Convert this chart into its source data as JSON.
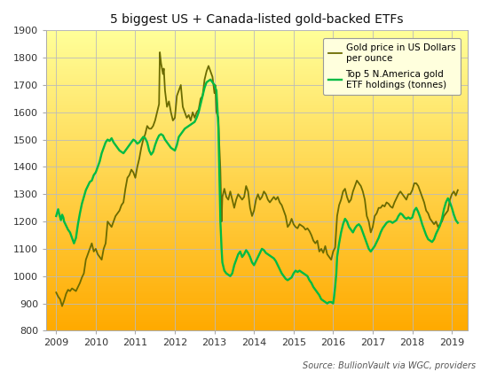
{
  "title": "5 biggest US + Canada-listed gold-backed ETFs",
  "source_text": "Source: BullionVault via WGC, providers",
  "legend_line1": "Gold price in US Dollars\nper ounce",
  "legend_line2": "Top 5 N.America gold\nETF holdings (tonnes)",
  "ylim": [
    800,
    1900
  ],
  "yticks": [
    800,
    900,
    1000,
    1100,
    1200,
    1300,
    1400,
    1500,
    1600,
    1700,
    1800,
    1900
  ],
  "xlim": [
    2008.75,
    2019.4
  ],
  "xticks": [
    2009,
    2010,
    2011,
    2012,
    2013,
    2014,
    2015,
    2016,
    2017,
    2018,
    2019
  ],
  "color_gold_price": "#6b6b00",
  "color_etf_holdings": "#00bb44",
  "gold_price": [
    [
      2009.0,
      940
    ],
    [
      2009.05,
      925
    ],
    [
      2009.1,
      915
    ],
    [
      2009.15,
      890
    ],
    [
      2009.2,
      910
    ],
    [
      2009.25,
      935
    ],
    [
      2009.3,
      950
    ],
    [
      2009.35,
      945
    ],
    [
      2009.4,
      955
    ],
    [
      2009.45,
      950
    ],
    [
      2009.5,
      945
    ],
    [
      2009.55,
      960
    ],
    [
      2009.6,
      975
    ],
    [
      2009.65,
      995
    ],
    [
      2009.7,
      1010
    ],
    [
      2009.75,
      1060
    ],
    [
      2009.8,
      1080
    ],
    [
      2009.85,
      1100
    ],
    [
      2009.9,
      1120
    ],
    [
      2009.95,
      1090
    ],
    [
      2010.0,
      1100
    ],
    [
      2010.05,
      1080
    ],
    [
      2010.1,
      1070
    ],
    [
      2010.15,
      1060
    ],
    [
      2010.2,
      1100
    ],
    [
      2010.25,
      1120
    ],
    [
      2010.3,
      1200
    ],
    [
      2010.35,
      1190
    ],
    [
      2010.4,
      1180
    ],
    [
      2010.45,
      1200
    ],
    [
      2010.5,
      1220
    ],
    [
      2010.55,
      1230
    ],
    [
      2010.6,
      1240
    ],
    [
      2010.65,
      1260
    ],
    [
      2010.7,
      1270
    ],
    [
      2010.75,
      1320
    ],
    [
      2010.8,
      1360
    ],
    [
      2010.85,
      1370
    ],
    [
      2010.9,
      1390
    ],
    [
      2010.95,
      1380
    ],
    [
      2011.0,
      1360
    ],
    [
      2011.05,
      1400
    ],
    [
      2011.1,
      1430
    ],
    [
      2011.15,
      1470
    ],
    [
      2011.2,
      1500
    ],
    [
      2011.25,
      1520
    ],
    [
      2011.3,
      1550
    ],
    [
      2011.35,
      1540
    ],
    [
      2011.4,
      1540
    ],
    [
      2011.45,
      1550
    ],
    [
      2011.5,
      1570
    ],
    [
      2011.55,
      1600
    ],
    [
      2011.6,
      1630
    ],
    [
      2011.62,
      1820
    ],
    [
      2011.65,
      1780
    ],
    [
      2011.7,
      1740
    ],
    [
      2011.72,
      1760
    ],
    [
      2011.75,
      1680
    ],
    [
      2011.8,
      1620
    ],
    [
      2011.85,
      1640
    ],
    [
      2011.9,
      1600
    ],
    [
      2011.95,
      1570
    ],
    [
      2012.0,
      1580
    ],
    [
      2012.05,
      1660
    ],
    [
      2012.1,
      1680
    ],
    [
      2012.15,
      1700
    ],
    [
      2012.2,
      1620
    ],
    [
      2012.25,
      1600
    ],
    [
      2012.3,
      1580
    ],
    [
      2012.35,
      1590
    ],
    [
      2012.4,
      1570
    ],
    [
      2012.45,
      1600
    ],
    [
      2012.5,
      1580
    ],
    [
      2012.55,
      1600
    ],
    [
      2012.6,
      1610
    ],
    [
      2012.65,
      1650
    ],
    [
      2012.7,
      1660
    ],
    [
      2012.75,
      1720
    ],
    [
      2012.8,
      1750
    ],
    [
      2012.85,
      1770
    ],
    [
      2012.9,
      1750
    ],
    [
      2012.95,
      1730
    ],
    [
      2013.0,
      1670
    ],
    [
      2013.02,
      1700
    ],
    [
      2013.05,
      1600
    ],
    [
      2013.1,
      1580
    ],
    [
      2013.12,
      1490
    ],
    [
      2013.15,
      1390
    ],
    [
      2013.18,
      1200
    ],
    [
      2013.2,
      1290
    ],
    [
      2013.25,
      1320
    ],
    [
      2013.3,
      1290
    ],
    [
      2013.35,
      1280
    ],
    [
      2013.4,
      1310
    ],
    [
      2013.45,
      1280
    ],
    [
      2013.5,
      1250
    ],
    [
      2013.55,
      1280
    ],
    [
      2013.6,
      1300
    ],
    [
      2013.65,
      1290
    ],
    [
      2013.7,
      1280
    ],
    [
      2013.75,
      1290
    ],
    [
      2013.8,
      1330
    ],
    [
      2013.85,
      1310
    ],
    [
      2013.9,
      1250
    ],
    [
      2013.95,
      1220
    ],
    [
      2014.0,
      1240
    ],
    [
      2014.05,
      1280
    ],
    [
      2014.1,
      1300
    ],
    [
      2014.15,
      1280
    ],
    [
      2014.2,
      1290
    ],
    [
      2014.25,
      1310
    ],
    [
      2014.3,
      1300
    ],
    [
      2014.35,
      1280
    ],
    [
      2014.4,
      1270
    ],
    [
      2014.45,
      1280
    ],
    [
      2014.5,
      1290
    ],
    [
      2014.55,
      1280
    ],
    [
      2014.6,
      1290
    ],
    [
      2014.65,
      1270
    ],
    [
      2014.7,
      1260
    ],
    [
      2014.75,
      1240
    ],
    [
      2014.8,
      1220
    ],
    [
      2014.85,
      1180
    ],
    [
      2014.9,
      1190
    ],
    [
      2014.95,
      1210
    ],
    [
      2015.0,
      1190
    ],
    [
      2015.05,
      1180
    ],
    [
      2015.1,
      1175
    ],
    [
      2015.15,
      1190
    ],
    [
      2015.2,
      1185
    ],
    [
      2015.25,
      1180
    ],
    [
      2015.3,
      1170
    ],
    [
      2015.35,
      1175
    ],
    [
      2015.4,
      1165
    ],
    [
      2015.45,
      1150
    ],
    [
      2015.5,
      1130
    ],
    [
      2015.55,
      1120
    ],
    [
      2015.6,
      1130
    ],
    [
      2015.65,
      1090
    ],
    [
      2015.7,
      1100
    ],
    [
      2015.75,
      1085
    ],
    [
      2015.8,
      1110
    ],
    [
      2015.85,
      1080
    ],
    [
      2015.9,
      1070
    ],
    [
      2015.95,
      1060
    ],
    [
      2016.0,
      1090
    ],
    [
      2016.05,
      1105
    ],
    [
      2016.1,
      1220
    ],
    [
      2016.15,
      1260
    ],
    [
      2016.2,
      1280
    ],
    [
      2016.25,
      1310
    ],
    [
      2016.3,
      1320
    ],
    [
      2016.35,
      1290
    ],
    [
      2016.4,
      1270
    ],
    [
      2016.45,
      1280
    ],
    [
      2016.5,
      1310
    ],
    [
      2016.55,
      1330
    ],
    [
      2016.6,
      1350
    ],
    [
      2016.65,
      1340
    ],
    [
      2016.7,
      1330
    ],
    [
      2016.75,
      1310
    ],
    [
      2016.8,
      1280
    ],
    [
      2016.85,
      1220
    ],
    [
      2016.9,
      1200
    ],
    [
      2016.95,
      1160
    ],
    [
      2017.0,
      1180
    ],
    [
      2017.05,
      1220
    ],
    [
      2017.1,
      1230
    ],
    [
      2017.15,
      1250
    ],
    [
      2017.2,
      1250
    ],
    [
      2017.25,
      1260
    ],
    [
      2017.3,
      1255
    ],
    [
      2017.35,
      1270
    ],
    [
      2017.4,
      1265
    ],
    [
      2017.45,
      1255
    ],
    [
      2017.5,
      1250
    ],
    [
      2017.55,
      1270
    ],
    [
      2017.6,
      1285
    ],
    [
      2017.65,
      1300
    ],
    [
      2017.7,
      1310
    ],
    [
      2017.75,
      1300
    ],
    [
      2017.8,
      1290
    ],
    [
      2017.85,
      1280
    ],
    [
      2017.9,
      1300
    ],
    [
      2017.95,
      1300
    ],
    [
      2018.0,
      1315
    ],
    [
      2018.05,
      1340
    ],
    [
      2018.1,
      1340
    ],
    [
      2018.15,
      1330
    ],
    [
      2018.2,
      1310
    ],
    [
      2018.25,
      1290
    ],
    [
      2018.3,
      1270
    ],
    [
      2018.35,
      1240
    ],
    [
      2018.4,
      1230
    ],
    [
      2018.45,
      1210
    ],
    [
      2018.5,
      1200
    ],
    [
      2018.55,
      1190
    ],
    [
      2018.6,
      1200
    ],
    [
      2018.65,
      1180
    ],
    [
      2018.7,
      1190
    ],
    [
      2018.75,
      1200
    ],
    [
      2018.8,
      1220
    ],
    [
      2018.85,
      1230
    ],
    [
      2018.9,
      1240
    ],
    [
      2018.95,
      1280
    ],
    [
      2019.0,
      1300
    ],
    [
      2019.05,
      1310
    ],
    [
      2019.1,
      1295
    ],
    [
      2019.15,
      1315
    ]
  ],
  "etf_holdings": [
    [
      2009.0,
      1220
    ],
    [
      2009.03,
      1235
    ],
    [
      2009.05,
      1245
    ],
    [
      2009.08,
      1225
    ],
    [
      2009.1,
      1215
    ],
    [
      2009.12,
      1205
    ],
    [
      2009.15,
      1225
    ],
    [
      2009.18,
      1215
    ],
    [
      2009.2,
      1200
    ],
    [
      2009.25,
      1185
    ],
    [
      2009.3,
      1170
    ],
    [
      2009.35,
      1160
    ],
    [
      2009.4,
      1140
    ],
    [
      2009.45,
      1120
    ],
    [
      2009.5,
      1140
    ],
    [
      2009.55,
      1190
    ],
    [
      2009.6,
      1230
    ],
    [
      2009.65,
      1265
    ],
    [
      2009.7,
      1290
    ],
    [
      2009.75,
      1315
    ],
    [
      2009.8,
      1330
    ],
    [
      2009.85,
      1345
    ],
    [
      2009.9,
      1350
    ],
    [
      2009.95,
      1370
    ],
    [
      2010.0,
      1380
    ],
    [
      2010.05,
      1400
    ],
    [
      2010.1,
      1420
    ],
    [
      2010.15,
      1450
    ],
    [
      2010.2,
      1470
    ],
    [
      2010.25,
      1490
    ],
    [
      2010.3,
      1500
    ],
    [
      2010.35,
      1495
    ],
    [
      2010.4,
      1505
    ],
    [
      2010.45,
      1490
    ],
    [
      2010.5,
      1480
    ],
    [
      2010.55,
      1470
    ],
    [
      2010.6,
      1460
    ],
    [
      2010.65,
      1455
    ],
    [
      2010.7,
      1450
    ],
    [
      2010.75,
      1460
    ],
    [
      2010.8,
      1470
    ],
    [
      2010.85,
      1480
    ],
    [
      2010.9,
      1490
    ],
    [
      2010.95,
      1500
    ],
    [
      2011.0,
      1495
    ],
    [
      2011.05,
      1485
    ],
    [
      2011.1,
      1490
    ],
    [
      2011.15,
      1500
    ],
    [
      2011.2,
      1510
    ],
    [
      2011.25,
      1505
    ],
    [
      2011.3,
      1490
    ],
    [
      2011.35,
      1460
    ],
    [
      2011.4,
      1445
    ],
    [
      2011.45,
      1455
    ],
    [
      2011.5,
      1480
    ],
    [
      2011.55,
      1500
    ],
    [
      2011.6,
      1515
    ],
    [
      2011.65,
      1520
    ],
    [
      2011.7,
      1515
    ],
    [
      2011.75,
      1500
    ],
    [
      2011.8,
      1490
    ],
    [
      2011.85,
      1480
    ],
    [
      2011.9,
      1470
    ],
    [
      2011.95,
      1465
    ],
    [
      2012.0,
      1460
    ],
    [
      2012.05,
      1480
    ],
    [
      2012.1,
      1510
    ],
    [
      2012.15,
      1520
    ],
    [
      2012.2,
      1530
    ],
    [
      2012.25,
      1540
    ],
    [
      2012.3,
      1545
    ],
    [
      2012.35,
      1550
    ],
    [
      2012.4,
      1555
    ],
    [
      2012.45,
      1560
    ],
    [
      2012.5,
      1565
    ],
    [
      2012.55,
      1580
    ],
    [
      2012.6,
      1600
    ],
    [
      2012.65,
      1630
    ],
    [
      2012.7,
      1660
    ],
    [
      2012.75,
      1690
    ],
    [
      2012.8,
      1710
    ],
    [
      2012.85,
      1715
    ],
    [
      2012.9,
      1720
    ],
    [
      2012.95,
      1710
    ],
    [
      2013.0,
      1700
    ],
    [
      2013.02,
      1690
    ],
    [
      2013.05,
      1680
    ],
    [
      2013.08,
      1600
    ],
    [
      2013.1,
      1540
    ],
    [
      2013.12,
      1400
    ],
    [
      2013.15,
      1200
    ],
    [
      2013.18,
      1100
    ],
    [
      2013.2,
      1050
    ],
    [
      2013.25,
      1020
    ],
    [
      2013.3,
      1010
    ],
    [
      2013.35,
      1005
    ],
    [
      2013.4,
      1000
    ],
    [
      2013.45,
      1010
    ],
    [
      2013.5,
      1040
    ],
    [
      2013.55,
      1060
    ],
    [
      2013.6,
      1080
    ],
    [
      2013.65,
      1090
    ],
    [
      2013.7,
      1070
    ],
    [
      2013.75,
      1080
    ],
    [
      2013.8,
      1095
    ],
    [
      2013.85,
      1085
    ],
    [
      2013.9,
      1070
    ],
    [
      2013.95,
      1050
    ],
    [
      2014.0,
      1040
    ],
    [
      2014.05,
      1055
    ],
    [
      2014.1,
      1070
    ],
    [
      2014.15,
      1085
    ],
    [
      2014.2,
      1100
    ],
    [
      2014.25,
      1095
    ],
    [
      2014.3,
      1085
    ],
    [
      2014.35,
      1080
    ],
    [
      2014.4,
      1075
    ],
    [
      2014.45,
      1070
    ],
    [
      2014.5,
      1065
    ],
    [
      2014.55,
      1055
    ],
    [
      2014.6,
      1040
    ],
    [
      2014.65,
      1025
    ],
    [
      2014.7,
      1010
    ],
    [
      2014.75,
      1000
    ],
    [
      2014.8,
      990
    ],
    [
      2014.85,
      985
    ],
    [
      2014.9,
      990
    ],
    [
      2014.95,
      995
    ],
    [
      2015.0,
      1010
    ],
    [
      2015.05,
      1020
    ],
    [
      2015.1,
      1015
    ],
    [
      2015.15,
      1020
    ],
    [
      2015.2,
      1015
    ],
    [
      2015.25,
      1010
    ],
    [
      2015.3,
      1005
    ],
    [
      2015.35,
      1000
    ],
    [
      2015.4,
      985
    ],
    [
      2015.45,
      975
    ],
    [
      2015.5,
      960
    ],
    [
      2015.55,
      950
    ],
    [
      2015.6,
      940
    ],
    [
      2015.65,
      930
    ],
    [
      2015.7,
      915
    ],
    [
      2015.75,
      910
    ],
    [
      2015.8,
      905
    ],
    [
      2015.85,
      900
    ],
    [
      2015.9,
      905
    ],
    [
      2015.95,
      905
    ],
    [
      2016.0,
      900
    ],
    [
      2016.02,
      920
    ],
    [
      2016.05,
      960
    ],
    [
      2016.08,
      1010
    ],
    [
      2016.1,
      1070
    ],
    [
      2016.15,
      1120
    ],
    [
      2016.2,
      1160
    ],
    [
      2016.25,
      1190
    ],
    [
      2016.3,
      1210
    ],
    [
      2016.35,
      1200
    ],
    [
      2016.4,
      1180
    ],
    [
      2016.45,
      1170
    ],
    [
      2016.5,
      1160
    ],
    [
      2016.55,
      1175
    ],
    [
      2016.6,
      1185
    ],
    [
      2016.65,
      1190
    ],
    [
      2016.7,
      1180
    ],
    [
      2016.75,
      1160
    ],
    [
      2016.8,
      1140
    ],
    [
      2016.85,
      1120
    ],
    [
      2016.9,
      1100
    ],
    [
      2016.95,
      1090
    ],
    [
      2017.0,
      1100
    ],
    [
      2017.05,
      1110
    ],
    [
      2017.1,
      1125
    ],
    [
      2017.15,
      1140
    ],
    [
      2017.2,
      1160
    ],
    [
      2017.25,
      1175
    ],
    [
      2017.3,
      1185
    ],
    [
      2017.35,
      1195
    ],
    [
      2017.4,
      1200
    ],
    [
      2017.45,
      1200
    ],
    [
      2017.5,
      1195
    ],
    [
      2017.55,
      1200
    ],
    [
      2017.6,
      1205
    ],
    [
      2017.65,
      1220
    ],
    [
      2017.7,
      1230
    ],
    [
      2017.75,
      1225
    ],
    [
      2017.8,
      1215
    ],
    [
      2017.85,
      1210
    ],
    [
      2017.9,
      1215
    ],
    [
      2017.95,
      1210
    ],
    [
      2018.0,
      1215
    ],
    [
      2018.05,
      1240
    ],
    [
      2018.1,
      1250
    ],
    [
      2018.15,
      1235
    ],
    [
      2018.2,
      1215
    ],
    [
      2018.25,
      1190
    ],
    [
      2018.3,
      1170
    ],
    [
      2018.35,
      1150
    ],
    [
      2018.4,
      1135
    ],
    [
      2018.45,
      1130
    ],
    [
      2018.5,
      1125
    ],
    [
      2018.55,
      1135
    ],
    [
      2018.6,
      1155
    ],
    [
      2018.65,
      1170
    ],
    [
      2018.7,
      1185
    ],
    [
      2018.75,
      1210
    ],
    [
      2018.8,
      1245
    ],
    [
      2018.85,
      1270
    ],
    [
      2018.9,
      1285
    ],
    [
      2018.95,
      1270
    ],
    [
      2019.0,
      1250
    ],
    [
      2019.05,
      1225
    ],
    [
      2019.1,
      1205
    ],
    [
      2019.15,
      1195
    ]
  ]
}
